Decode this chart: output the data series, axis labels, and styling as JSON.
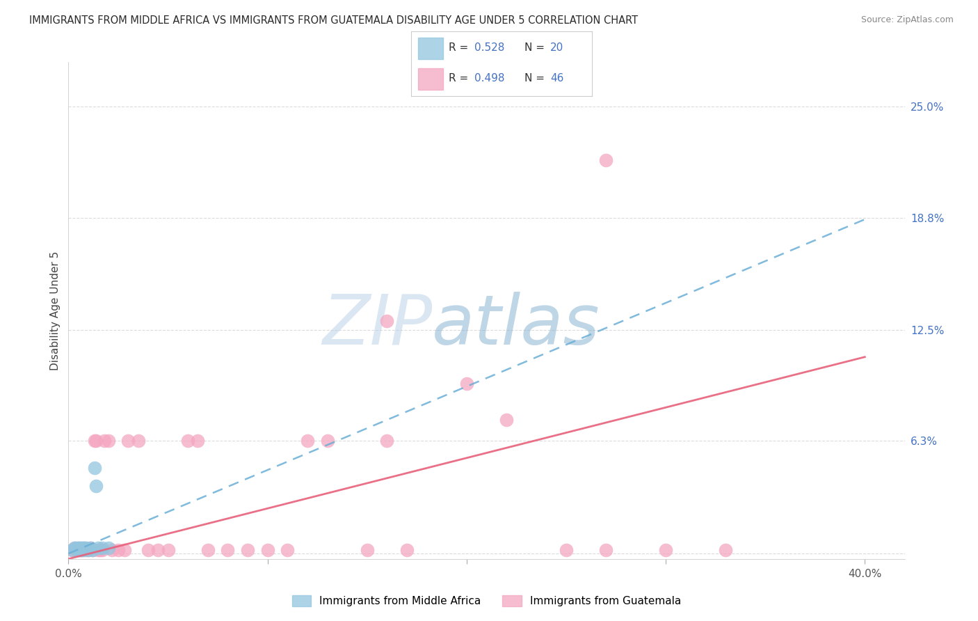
{
  "title": "IMMIGRANTS FROM MIDDLE AFRICA VS IMMIGRANTS FROM GUATEMALA DISABILITY AGE UNDER 5 CORRELATION CHART",
  "source": "Source: ZipAtlas.com",
  "ylabel": "Disability Age Under 5",
  "y_ticks_right": [
    0.0,
    0.063,
    0.125,
    0.188,
    0.25
  ],
  "y_tick_labels_right": [
    "",
    "6.3%",
    "12.5%",
    "18.8%",
    "25.0%"
  ],
  "x_ticks": [
    0.0,
    0.1,
    0.2,
    0.3,
    0.4
  ],
  "x_tick_labels": [
    "0.0%",
    "",
    "",
    "",
    "40.0%"
  ],
  "xlim": [
    0.0,
    0.42
  ],
  "ylim": [
    -0.003,
    0.275
  ],
  "legend_label1": "Immigrants from Middle Africa",
  "legend_label2": "Immigrants from Guatemala",
  "blue_color": "#92c5de",
  "pink_color": "#f4a6c0",
  "blue_line_color": "#6aaed6",
  "pink_line_color": "#e8607a",
  "watermark_zip": "ZIP",
  "watermark_atlas": "atlas",
  "grid_color": "#d8d8d8",
  "bg_color": "#ffffff",
  "blue_x": [
    0.002,
    0.003,
    0.004,
    0.005,
    0.005,
    0.006,
    0.006,
    0.007,
    0.007,
    0.008,
    0.008,
    0.009,
    0.01,
    0.011,
    0.012,
    0.013,
    0.014,
    0.015,
    0.017,
    0.02
  ],
  "blue_y": [
    0.002,
    0.003,
    0.003,
    0.002,
    0.003,
    0.003,
    0.002,
    0.003,
    0.002,
    0.003,
    0.002,
    0.003,
    0.002,
    0.003,
    0.002,
    0.048,
    0.038,
    0.003,
    0.003,
    0.003
  ],
  "pink_x": [
    0.002,
    0.003,
    0.004,
    0.005,
    0.006,
    0.007,
    0.008,
    0.009,
    0.01,
    0.011,
    0.012,
    0.013,
    0.014,
    0.015,
    0.016,
    0.017,
    0.018,
    0.02,
    0.022,
    0.025,
    0.028,
    0.03,
    0.035,
    0.04,
    0.045,
    0.05,
    0.06,
    0.065,
    0.07,
    0.08,
    0.09,
    0.1,
    0.11,
    0.12,
    0.13,
    0.15,
    0.16,
    0.17,
    0.2,
    0.22,
    0.25,
    0.27,
    0.3,
    0.33,
    0.16,
    0.27
  ],
  "pink_y": [
    0.002,
    0.003,
    0.002,
    0.003,
    0.002,
    0.002,
    0.003,
    0.002,
    0.002,
    0.003,
    0.002,
    0.063,
    0.063,
    0.002,
    0.002,
    0.002,
    0.063,
    0.063,
    0.002,
    0.002,
    0.002,
    0.063,
    0.063,
    0.002,
    0.002,
    0.002,
    0.063,
    0.063,
    0.002,
    0.002,
    0.002,
    0.002,
    0.002,
    0.063,
    0.063,
    0.002,
    0.063,
    0.002,
    0.095,
    0.075,
    0.002,
    0.002,
    0.002,
    0.002,
    0.13,
    0.22
  ],
  "blue_line_x0": 0.0,
  "blue_line_y0": 0.0,
  "blue_line_x1": 0.4,
  "blue_line_y1": 0.187,
  "pink_line_x0": 0.0,
  "pink_line_y0": -0.003,
  "pink_line_x1": 0.4,
  "pink_line_y1": 0.11
}
